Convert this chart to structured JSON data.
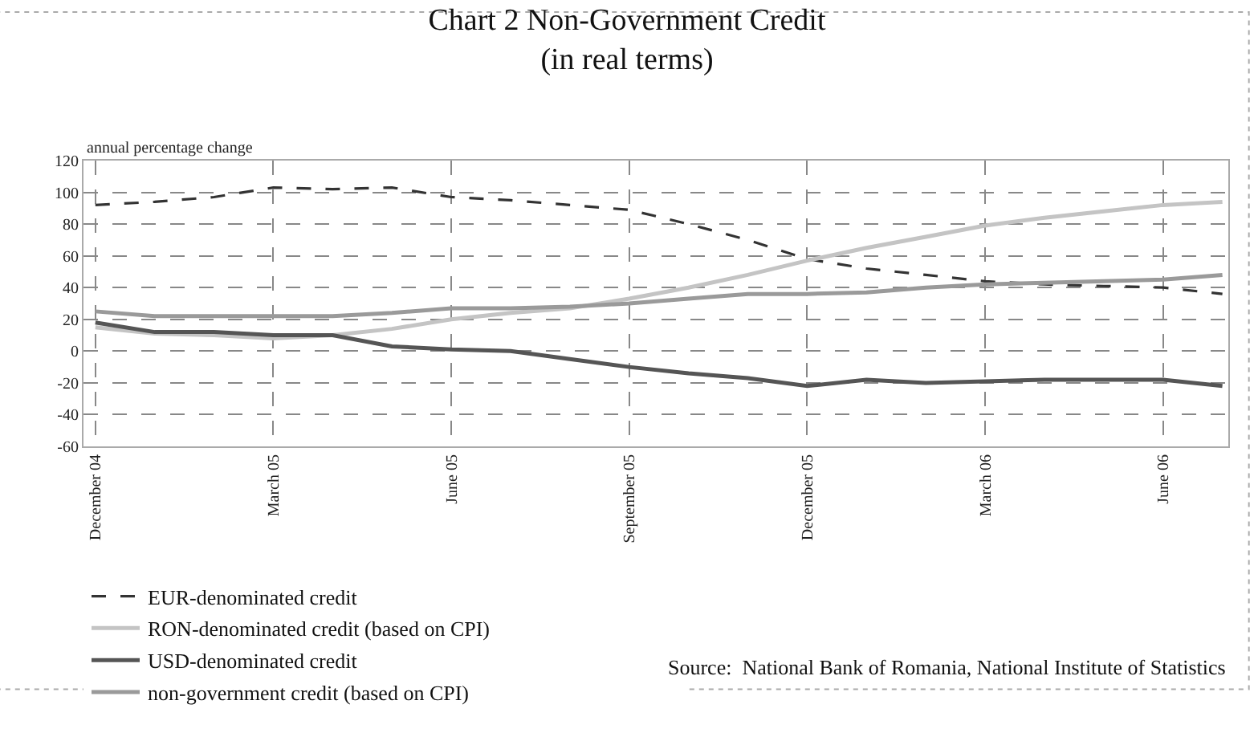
{
  "chart_data": {
    "type": "line",
    "title": "Chart 2 Non-Government Credit",
    "subtitle": "(in real terms)",
    "ylabel": "annual percentage change",
    "categories": [
      "December 04",
      null,
      null,
      "March 05",
      null,
      null,
      "June 05",
      null,
      null,
      "September 05",
      null,
      null,
      "December 05",
      null,
      null,
      "March 06",
      null,
      null,
      "June 06",
      null
    ],
    "series": [
      {
        "name": "EUR-denominated credit",
        "color": "#333333",
        "line_style": "dashed",
        "values": [
          92,
          94,
          97,
          103,
          102,
          103,
          97,
          95,
          92,
          89,
          80,
          70,
          58,
          52,
          48,
          44,
          42,
          41,
          40,
          36
        ]
      },
      {
        "name": "RON-denominated credit (based on CPI)",
        "color": "#c4c4c4",
        "line_style": "solid",
        "values": [
          15,
          11,
          10,
          8,
          10,
          14,
          20,
          24,
          27,
          33,
          40,
          48,
          57,
          65,
          72,
          79,
          84,
          88,
          92,
          94
        ]
      },
      {
        "name": "USD-denominated credit",
        "color": "#555555",
        "line_style": "solid",
        "values": [
          18,
          12,
          12,
          10,
          10,
          3,
          1,
          0,
          -5,
          -10,
          -14,
          -17,
          -22,
          -18,
          -20,
          -19,
          -18,
          -18,
          -18,
          -22
        ]
      },
      {
        "name": "non-government credit (based on CPI)",
        "color": "#9a9a9a",
        "line_style": "solid",
        "values": [
          25,
          22,
          22,
          22,
          22,
          24,
          27,
          27,
          28,
          30,
          33,
          36,
          36,
          37,
          40,
          42,
          43,
          44,
          45,
          48
        ]
      }
    ],
    "ylim": [
      -60,
      120
    ],
    "yticks": [
      -60,
      -40,
      -20,
      0,
      20,
      40,
      60,
      80,
      100,
      120
    ],
    "grid": true,
    "legend": "bottom",
    "marker": "none",
    "annotations": [
      "Source:  National Bank of Romania, National Institute of Statistics"
    ]
  }
}
